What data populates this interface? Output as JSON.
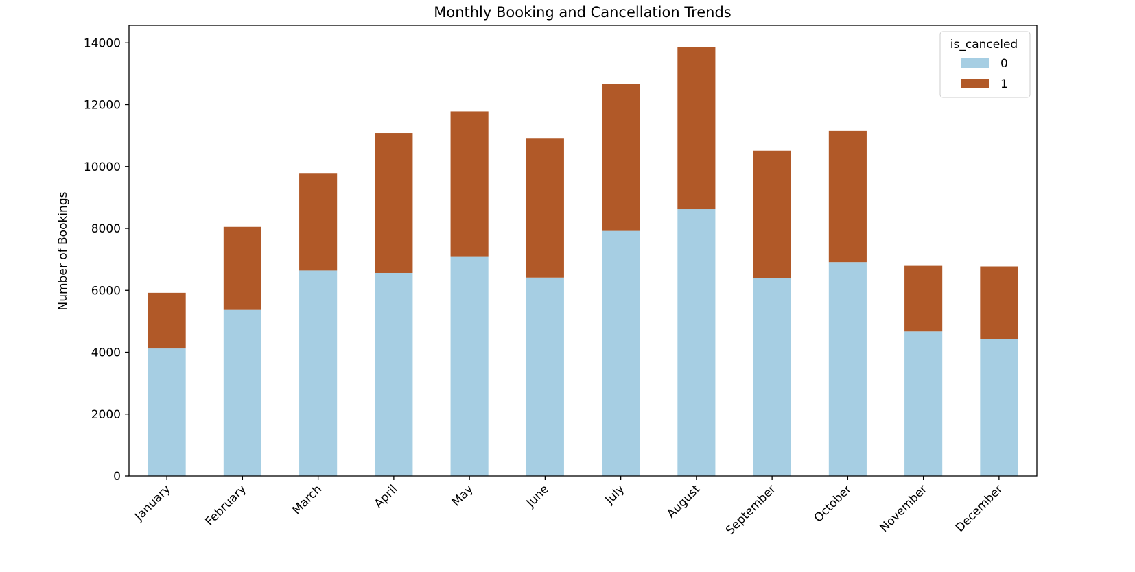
{
  "chart_data": {
    "type": "bar",
    "stacked": true,
    "title": "Monthly Booking and Cancellation Trends",
    "xlabel": "",
    "ylabel": "Number of Bookings",
    "ylim": [
      0,
      14560
    ],
    "yticks": [
      0,
      2000,
      4000,
      6000,
      8000,
      10000,
      12000,
      14000
    ],
    "grid": false,
    "legend": {
      "title": "is_canceled",
      "placement": "top-right"
    },
    "categories": [
      "January",
      "February",
      "March",
      "April",
      "May",
      "June",
      "July",
      "August",
      "September",
      "October",
      "November",
      "December"
    ],
    "series": [
      {
        "name": "0",
        "color": "#a6cee3",
        "values": [
          4120,
          5370,
          6640,
          6560,
          7100,
          6410,
          7920,
          8620,
          6390,
          6910,
          4670,
          4410
        ]
      },
      {
        "name": "1",
        "color": "#b15928",
        "values": [
          1800,
          2680,
          3150,
          4520,
          4680,
          4510,
          4740,
          5240,
          4120,
          4240,
          2120,
          2360
        ]
      }
    ]
  }
}
